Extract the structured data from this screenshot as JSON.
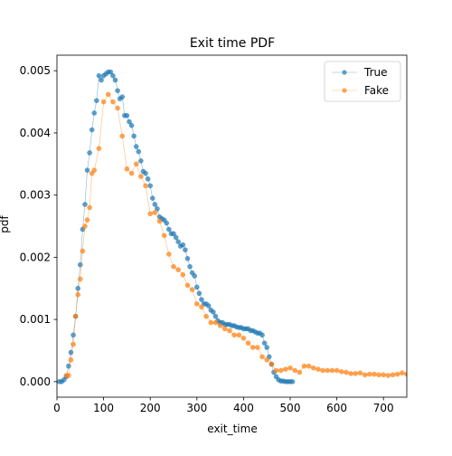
{
  "chart_data": {
    "type": "line",
    "title": "Exit time PDF",
    "xlabel": "exit_time",
    "ylabel": "pdf",
    "xlim": [
      0,
      750
    ],
    "ylim": [
      -0.00025,
      0.00525
    ],
    "xticks": [
      0,
      100,
      200,
      300,
      400,
      500,
      600,
      700
    ],
    "yticks": [
      0.0,
      0.001,
      0.002,
      0.003,
      0.004,
      0.005
    ],
    "ytick_labels": [
      "0.000",
      "0.001",
      "0.002",
      "0.003",
      "0.004",
      "0.005"
    ],
    "grid": false,
    "legend_position": "top-right",
    "series": [
      {
        "name": "True",
        "color": "#1f77b4",
        "x": [
          5,
          10,
          15,
          20,
          25,
          30,
          35,
          40,
          45,
          50,
          55,
          60,
          65,
          70,
          75,
          80,
          85,
          90,
          95,
          100,
          105,
          110,
          115,
          120,
          125,
          130,
          135,
          140,
          145,
          150,
          155,
          160,
          165,
          170,
          175,
          180,
          185,
          190,
          195,
          200,
          205,
          210,
          215,
          220,
          225,
          230,
          235,
          240,
          245,
          250,
          255,
          260,
          265,
          270,
          275,
          280,
          285,
          290,
          295,
          300,
          305,
          310,
          315,
          320,
          325,
          330,
          335,
          340,
          345,
          350,
          355,
          360,
          365,
          370,
          375,
          380,
          385,
          390,
          395,
          400,
          405,
          410,
          415,
          420,
          425,
          430,
          435,
          440,
          445,
          450,
          455,
          460,
          465,
          470,
          475,
          480,
          485,
          490,
          495,
          500,
          505
        ],
        "y": [
          0.0,
          0.0,
          3e-05,
          8e-05,
          0.00025,
          0.00047,
          0.00075,
          0.00105,
          0.0015,
          0.00188,
          0.00245,
          0.00285,
          0.0034,
          0.00368,
          0.00405,
          0.00432,
          0.00452,
          0.00492,
          0.00485,
          0.00492,
          0.00495,
          0.00498,
          0.00498,
          0.00492,
          0.00485,
          0.00468,
          0.00455,
          0.00458,
          0.00428,
          0.00428,
          0.00418,
          0.00412,
          0.00395,
          0.00378,
          0.0037,
          0.00355,
          0.00338,
          0.00335,
          0.00326,
          0.00315,
          0.00295,
          0.00285,
          0.00278,
          0.00265,
          0.00262,
          0.0026,
          0.00255,
          0.00245,
          0.00238,
          0.00238,
          0.00232,
          0.00225,
          0.00218,
          0.0022,
          0.00212,
          0.00198,
          0.00185,
          0.00175,
          0.0017,
          0.00152,
          0.00142,
          0.00132,
          0.00125,
          0.00125,
          0.00122,
          0.00115,
          0.00112,
          0.00105,
          0.00098,
          0.00095,
          0.00095,
          0.00092,
          0.00092,
          0.00092,
          0.0009,
          0.0009,
          0.00088,
          0.00087,
          0.00087,
          0.00085,
          0.00085,
          0.00085,
          0.00082,
          0.00082,
          0.0008,
          0.00078,
          0.00078,
          0.00075,
          0.00062,
          0.00055,
          0.0004,
          0.00028,
          0.00015,
          8e-05,
          3e-05,
          1e-05,
          1e-05,
          0.0,
          0.0,
          0.0,
          0.0
        ]
      },
      {
        "name": "Fake",
        "color": "#ff7f0e",
        "x": [
          20,
          25,
          30,
          35,
          40,
          45,
          50,
          55,
          60,
          65,
          70,
          75,
          80,
          90,
          100,
          110,
          120,
          130,
          140,
          150,
          160,
          170,
          180,
          190,
          200,
          210,
          220,
          230,
          240,
          250,
          260,
          270,
          280,
          290,
          300,
          310,
          320,
          330,
          340,
          350,
          360,
          370,
          380,
          390,
          400,
          410,
          420,
          430,
          440,
          450,
          460,
          470,
          480,
          490,
          500,
          510,
          520,
          530,
          540,
          550,
          560,
          570,
          580,
          590,
          600,
          610,
          620,
          630,
          640,
          650,
          660,
          670,
          680,
          690,
          700,
          710,
          720,
          730,
          740,
          750
        ],
        "y": [
          0.0001,
          0.0001,
          0.00035,
          0.0006,
          0.00105,
          0.0014,
          0.00165,
          0.0021,
          0.0025,
          0.0026,
          0.0028,
          0.00335,
          0.0034,
          0.00375,
          0.0045,
          0.00462,
          0.0045,
          0.0044,
          0.00395,
          0.00342,
          0.00335,
          0.0035,
          0.0033,
          0.00315,
          0.0027,
          0.00272,
          0.00258,
          0.00235,
          0.00205,
          0.00185,
          0.0018,
          0.00172,
          0.00155,
          0.00148,
          0.00125,
          0.0012,
          0.00105,
          0.00095,
          0.00095,
          0.0009,
          0.00085,
          0.00082,
          0.00075,
          0.00075,
          0.0007,
          0.00062,
          0.00055,
          0.00055,
          0.0004,
          0.00035,
          0.00028,
          0.00018,
          0.00018,
          0.0002,
          0.00022,
          0.00018,
          0.00015,
          0.00025,
          0.00025,
          0.00022,
          0.0002,
          0.00018,
          0.00018,
          0.00018,
          0.00018,
          0.00016,
          0.00015,
          0.00013,
          0.00013,
          0.00014,
          0.00011,
          0.00012,
          0.00012,
          0.00011,
          0.00011,
          0.0001,
          0.00011,
          0.00012,
          0.00014,
          0.00012
        ]
      }
    ]
  }
}
